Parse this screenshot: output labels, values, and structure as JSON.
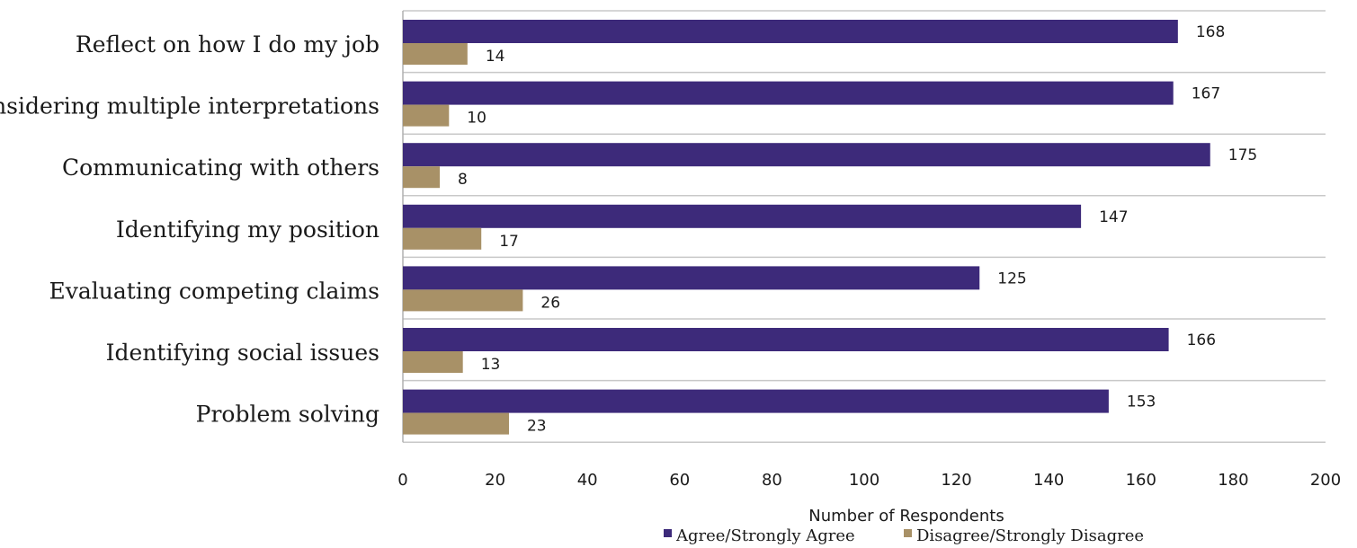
{
  "chart_data": {
    "type": "bar",
    "orientation": "horizontal",
    "categories": [
      "Reflect on how I do my job",
      "Considering multiple interpretations",
      "Communicating with others",
      "Identifying my position",
      "Evaluating competing claims",
      "Identifying social issues",
      "Problem solving"
    ],
    "series": [
      {
        "name": "Agree/Strongly Agree",
        "color": "#3d2a7a",
        "values": [
          168,
          167,
          175,
          147,
          125,
          166,
          153
        ]
      },
      {
        "name": "Disagree/Strongly Disagree",
        "color": "#a89167",
        "values": [
          14,
          10,
          8,
          17,
          26,
          13,
          23
        ]
      }
    ],
    "xlabel": "Number of Respondents",
    "xlim": [
      0,
      200
    ],
    "xticks": [
      0,
      20,
      40,
      60,
      80,
      100,
      120,
      140,
      160,
      180,
      200
    ],
    "grid": "horizontal separators between categories",
    "legend": "bottom-center"
  }
}
